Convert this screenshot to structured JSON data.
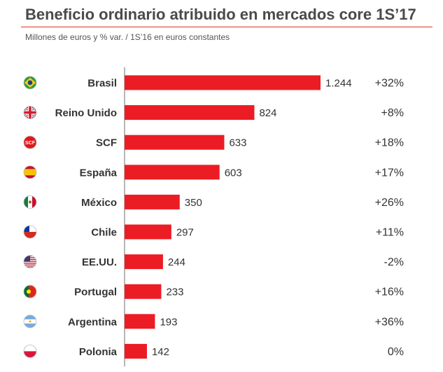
{
  "chart_data": {
    "type": "bar",
    "orientation": "horizontal",
    "title": "Beneficio ordinario atribuido en mercados core 1S’17",
    "subtitle": "Millones de euros y % var. / 1S’16 en euros constantes",
    "categories": [
      "Brasil",
      "Reino Unido",
      "SCF",
      "España",
      "México",
      "Chile",
      "EE.UU.",
      "Portugal",
      "Argentina",
      "Polonia"
    ],
    "values": [
      1244,
      824,
      633,
      603,
      350,
      297,
      244,
      233,
      193,
      142
    ],
    "value_labels": [
      "1.244",
      "824",
      "633",
      "603",
      "350",
      "297",
      "244",
      "233",
      "193",
      "142"
    ],
    "variations": [
      "+32%",
      "+8%",
      "+18%",
      "+17%",
      "+26%",
      "+11%",
      "-2%",
      "+16%",
      "+36%",
      "0%"
    ],
    "flag_icons": [
      "brazil-flag-icon",
      "uk-flag-icon",
      "scf-logo-icon",
      "spain-flag-icon",
      "mexico-flag-icon",
      "chile-flag-icon",
      "usa-flag-icon",
      "portugal-flag-icon",
      "argentina-flag-icon",
      "poland-flag-icon"
    ],
    "scf_logo_text": "SCF",
    "bar_color": "#ec1c24",
    "accent_color": "#e5332a",
    "xlim": [
      0,
      1244
    ]
  }
}
